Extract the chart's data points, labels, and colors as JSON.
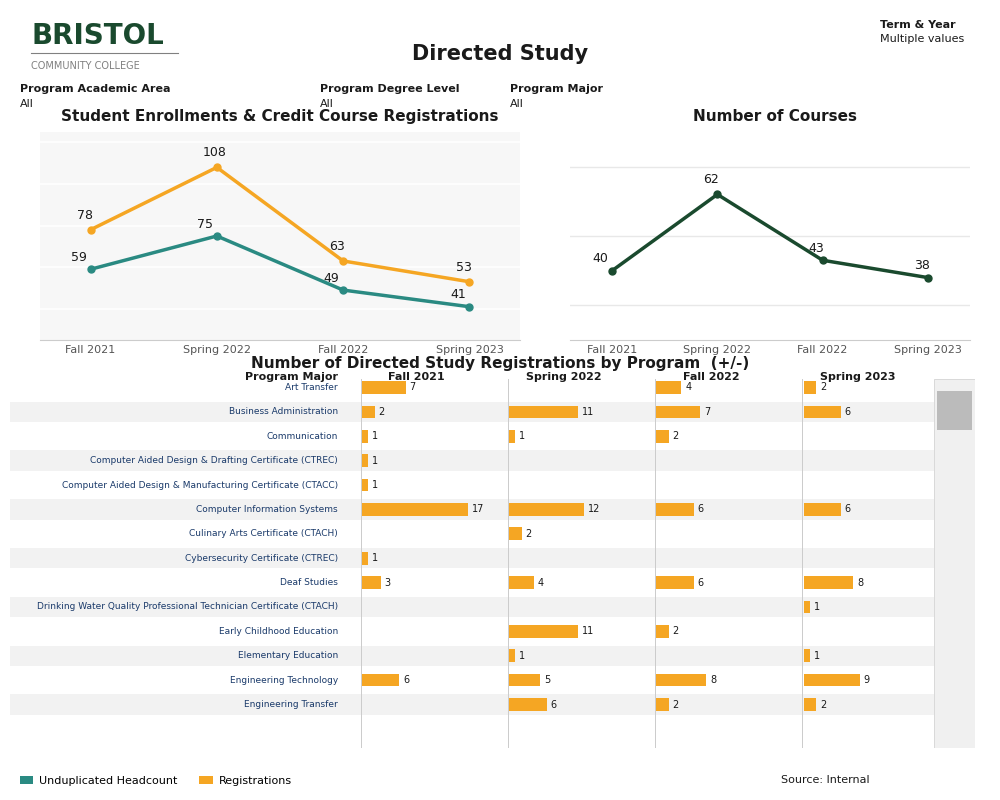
{
  "title": "Directed Study",
  "bristol_text": "BRISTOL",
  "community_college_text": "COMMUNITY COLLEGE",
  "term_year_label": "Term & Year",
  "term_year_value": "Multiple values",
  "filters": [
    {
      "label": "Program Academic Area",
      "value": "All"
    },
    {
      "label": "Program Degree Level",
      "value": "All"
    },
    {
      "label": "Program Major",
      "value": "All"
    }
  ],
  "enrollments_title": "Student Enrollments & Credit Course Registrations",
  "courses_title": "Number of Courses",
  "terms": [
    "Fall 2021",
    "Spring 2022",
    "Fall 2022",
    "Spring 2023"
  ],
  "headcount": [
    59,
    75,
    49,
    41
  ],
  "registrations": [
    78,
    108,
    63,
    53
  ],
  "courses": [
    40,
    62,
    43,
    38
  ],
  "teal_color": "#2a8a82",
  "orange_color": "#f5a623",
  "dark_green": "#1a4a2e",
  "navy_blue": "#1a3a6a",
  "table_title": "Number of Directed Study Registrations by Program  (+/-)",
  "col_headers": [
    "Program Major",
    "Fall 2021",
    "Spring 2022",
    "Fall 2022",
    "Spring 2023"
  ],
  "programs": [
    "Art Transfer",
    "Business Administration",
    "Communication",
    "Computer Aided Design & Drafting Certificate (CTREC)",
    "Computer Aided Design & Manufacturing Certificate (CTACC)",
    "Computer Information Systems",
    "Culinary Arts Certificate (CTACH)",
    "Cybersecurity Certificate (CTREC)",
    "Deaf Studies",
    "Drinking Water Quality Professional Technician Certificate (CTACH)",
    "Early Childhood Education",
    "Elementary Education",
    "Engineering Technology",
    "Engineering Transfer"
  ],
  "table_data": {
    "Fall 2021": [
      7,
      2,
      1,
      1,
      1,
      17,
      0,
      1,
      3,
      0,
      0,
      0,
      6,
      0
    ],
    "Spring 2022": [
      0,
      11,
      1,
      0,
      0,
      12,
      2,
      0,
      4,
      0,
      11,
      1,
      5,
      6
    ],
    "Fall 2022": [
      4,
      7,
      2,
      0,
      0,
      6,
      0,
      0,
      6,
      0,
      2,
      0,
      8,
      2
    ],
    "Spring 2023": [
      2,
      6,
      0,
      0,
      0,
      6,
      0,
      0,
      8,
      1,
      0,
      1,
      9,
      2
    ]
  },
  "source_text": "Source: Internal",
  "legend_headcount": "Unduplicated Headcount",
  "legend_registrations": "Registrations",
  "bg_color": "#ffffff",
  "grid_line_color": "#e8e8e8",
  "chart_bg": "#f7f7f7"
}
